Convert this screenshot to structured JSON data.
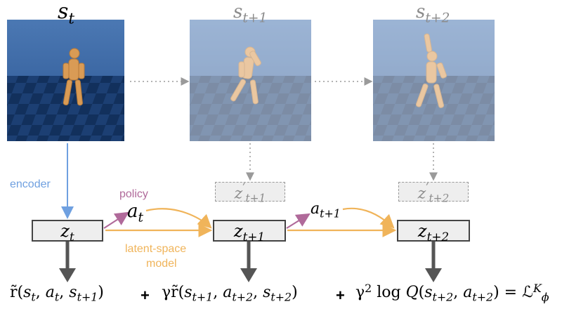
{
  "states": [
    {
      "sym": "s",
      "sub": "t"
    },
    {
      "sym": "s",
      "sub": "t+1"
    },
    {
      "sym": "s",
      "sub": "t+2"
    }
  ],
  "latents": [
    {
      "sym": "z",
      "sub": "t"
    },
    {
      "sym": "z",
      "sub": "t+1"
    },
    {
      "sym": "z",
      "sub": "t+2"
    }
  ],
  "predicted_latents": [
    {
      "sym": "z",
      "prime": "′",
      "sub": "t+1"
    },
    {
      "sym": "z",
      "prime": "′",
      "sub": "t+2"
    }
  ],
  "actions": [
    {
      "sym": "a",
      "sub": "t"
    },
    {
      "sym": "a",
      "sub": "t+1"
    }
  ],
  "labels": {
    "encoder": "encoder",
    "policy": "policy",
    "model_line1": "latent-space",
    "model_line2": "model"
  },
  "equation": {
    "term1": {
      "lead": "r̃(",
      "a1": "s",
      "s1": "t",
      "a2": "a",
      "s2": "t",
      "a3": "s",
      "s3": "t+1"
    },
    "plus": "+",
    "term2": {
      "lead": "γr̃(",
      "a1": "s",
      "s1": "t+1",
      "a2": "a",
      "s2": "t+2",
      "a3": "s",
      "s3": "t+2"
    },
    "term3": {
      "lead": "γ",
      "pow": "2",
      "fn": " log ",
      "q": "Q",
      "a1": "s",
      "s1": "t+2",
      "a2": "a",
      "s2": "t+2"
    },
    "rhs": {
      "sym": "ℒ",
      "sup": "K",
      "sub": "ϕ"
    }
  },
  "colors": {
    "encoder": "#6fa0e0",
    "policy": "#b06a9a",
    "model": "#f0b45a",
    "reward_arrow": "#555555",
    "dotted": "#9a9a9a",
    "frame_sky": "#3a6aa8",
    "figure": "#d99b55"
  },
  "icons": [
    "humanoid-frame",
    "humanoid-frame",
    "humanoid-frame"
  ]
}
